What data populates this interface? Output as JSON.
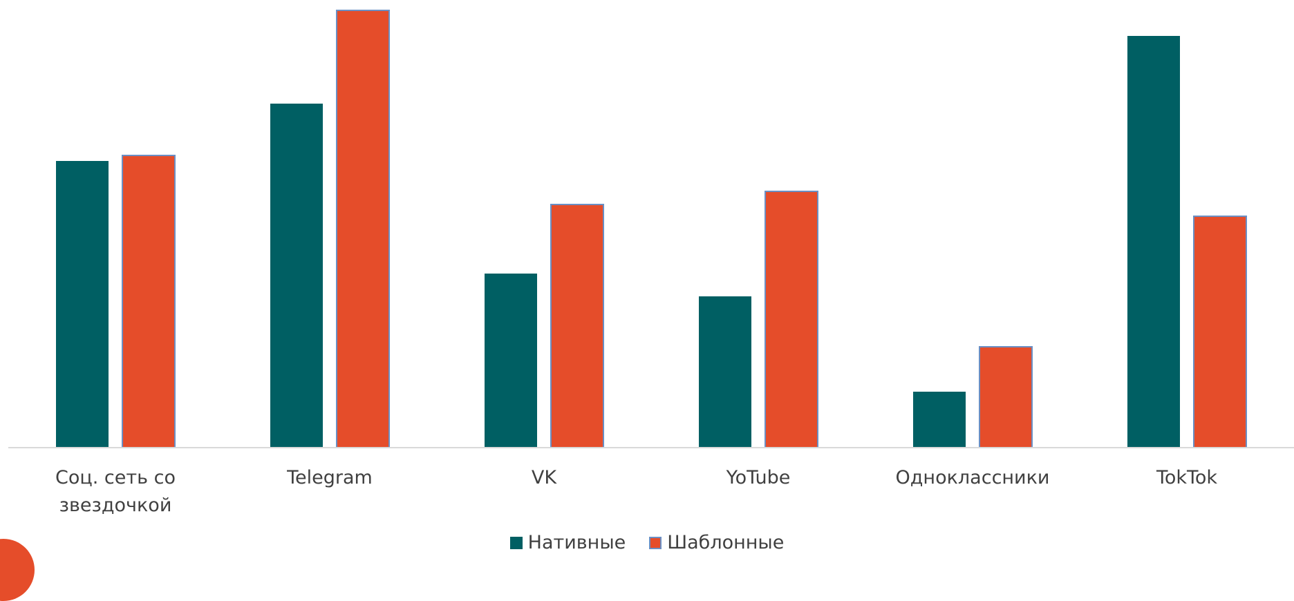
{
  "chart_data": {
    "type": "bar",
    "categories": [
      [
        "Соц. сеть со",
        "звездочкой"
      ],
      [
        "Telegram"
      ],
      [
        "VK"
      ],
      [
        "YoTube"
      ],
      [
        "Одноклассники"
      ],
      [
        "TokTok"
      ]
    ],
    "series": [
      {
        "name": "Нативные",
        "color": "#005f63",
        "values": [
          41.5,
          49.8,
          25.2,
          21.9,
          8.1,
          59.6
        ]
      },
      {
        "name": "Шаблонные",
        "color": "#e54d2a",
        "border": "#6a8fc4",
        "values": [
          42.3,
          63.3,
          35.2,
          37.1,
          14.6,
          33.5
        ]
      }
    ],
    "ylim": [
      0,
      63.3
    ],
    "grid": false,
    "legend_position": "bottom",
    "title": "",
    "xlabel": "",
    "ylabel": ""
  }
}
